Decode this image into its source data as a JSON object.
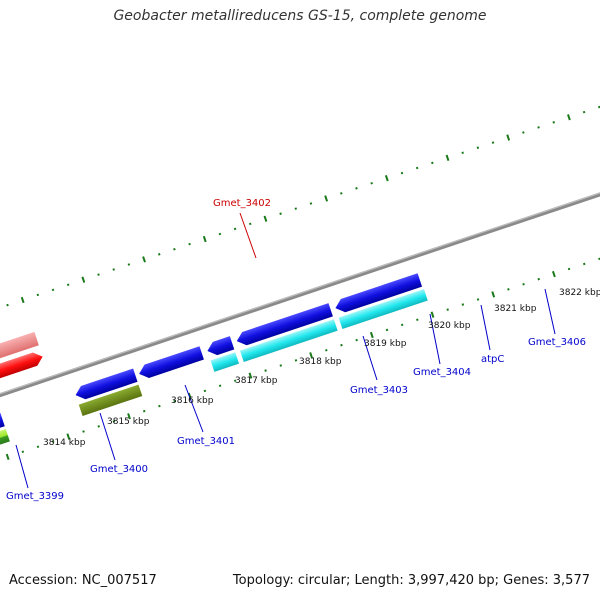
{
  "title": "Geobacter metallireducens GS-15, complete genome",
  "footer": {
    "accession": "Accession: NC_007517",
    "summary": "Topology: circular; Length: 3,997,420 bp; Genes: 3,577"
  },
  "kbp_labels": [
    "3814 kbp",
    "3815 kbp",
    "3816 kbp",
    "3817 kbp",
    "3818 kbp",
    "3819 kbp",
    "3820 kbp",
    "3821 kbp",
    "3822 kbp"
  ],
  "genes": [
    {
      "name": "Gmet_3399",
      "color": "#0000cc"
    },
    {
      "name": "Gmet_3400",
      "color": "#0000cc"
    },
    {
      "name": "Gmet_3401",
      "color": "#0000cc"
    },
    {
      "name": "Gmet_3402",
      "color": "#cc0000"
    },
    {
      "name": "Gmet_3403",
      "color": "#0000cc"
    },
    {
      "name": "Gmet_3404",
      "color": "#0000cc"
    },
    {
      "name": "atpC",
      "color": "#0000cc"
    },
    {
      "name": "Gmet_3406",
      "color": "#0000cc"
    }
  ],
  "colors": {
    "backbone": "#888888",
    "gene_blue": "#1010e0",
    "cds_green": "#2e8b20",
    "cds_lightgreen": "#b6f23a",
    "cds_olive": "#6b8a1e",
    "cds_cyan": "#22e8ee",
    "feature_red": "#ff1010",
    "feature_pink": "#f08080",
    "dots": "#1a7a1a"
  }
}
